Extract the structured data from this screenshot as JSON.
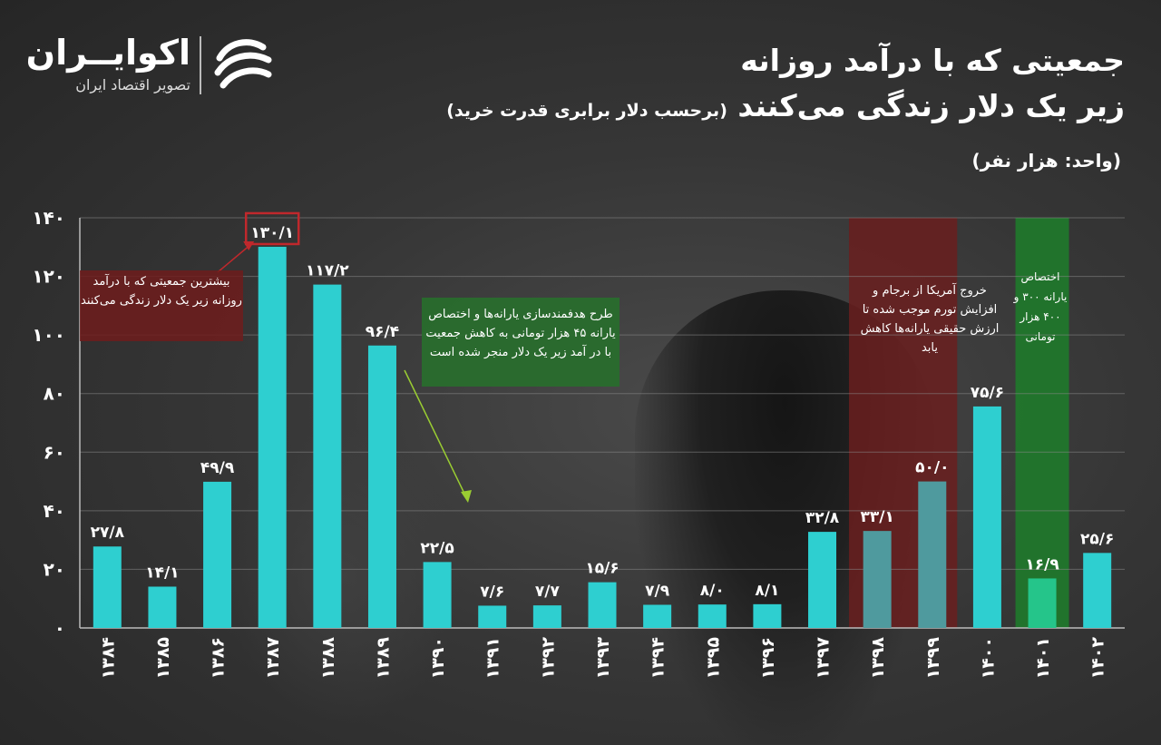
{
  "logo": {
    "name": "اکوایــران",
    "tagline": "تصویر اقتصاد ایران"
  },
  "title": {
    "line1": "جمعیتی که با درآمد روزانه",
    "line2": "زیر یک دلار زندگی می‌کنند",
    "line2_note": "(برحسب دلار برابری قدرت خرید)"
  },
  "unit_label": "(واحد: هزار نفر)",
  "annotations": {
    "max_note": "بیشترین جمعیتی که با درآمد روزانه زیر یک دلار زندگی می‌کنند",
    "subsidy_reform_note": "طرح هدفمندسازی یارانه‌ها و اختصاص یارانه ۴۵ هزار تومانی به کاهش جمعیت با در آمد زیر یک دلار منجر شده است",
    "us_exit_note": "خروج آمریکا از برجام و افزایش تورم موجب شده تا ارزش حقیقی یارانه‌ها کاهش یابد",
    "new_subsidy_note": "اختصاص یارانه ۳۰۰ و ۴۰۰ هزار تومانی"
  },
  "colors": {
    "bar": "#2ecfd0",
    "bar_red_zone": "#4f9a9e",
    "bar_green_zone": "#25c58a",
    "red_band": "#6a1e1e",
    "green_band": "#1f7a2b",
    "highlight_box": "#c0282c",
    "arrow": "#9acd32"
  },
  "chart_data": {
    "type": "bar",
    "categories": [
      "۱۳۸۴",
      "۱۳۸۵",
      "۱۳۸۶",
      "۱۳۸۷",
      "۱۳۸۸",
      "۱۳۸۹",
      "۱۳۹۰",
      "۱۳۹۱",
      "۱۳۹۲",
      "۱۳۹۳",
      "۱۳۹۴",
      "۱۳۹۵",
      "۱۳۹۶",
      "۱۳۹۷",
      "۱۳۹۸",
      "۱۳۹۹",
      "۱۴۰۰",
      "۱۴۰۱",
      "۱۴۰۲"
    ],
    "values": [
      27.8,
      14.1,
      49.9,
      130.1,
      117.2,
      96.4,
      22.5,
      7.6,
      7.7,
      15.6,
      7.9,
      8.0,
      8.1,
      32.8,
      33.1,
      50.0,
      75.6,
      16.9,
      25.6
    ],
    "value_labels": [
      "۲۷/۸",
      "۱۴/۱",
      "۴۹/۹",
      "۱۳۰/۱",
      "۱۱۷/۲",
      "۹۶/۴",
      "۲۲/۵",
      "۷/۶",
      "۷/۷",
      "۱۵/۶",
      "۷/۹",
      "۸/۰",
      "۸/۱",
      "۳۲/۸",
      "۳۳/۱",
      "۵۰/۰",
      "۷۵/۶",
      "۱۶/۹",
      "۲۵/۶"
    ],
    "ylim": [
      0,
      140
    ],
    "yticks": [
      0,
      20,
      40,
      60,
      80,
      100,
      120,
      140
    ],
    "ytick_labels": [
      "۰",
      "۲۰",
      "۴۰",
      "۶۰",
      "۸۰",
      "۱۰۰",
      "۱۲۰",
      "۱۴۰"
    ],
    "grid": true,
    "highlighted_bar_index": 3,
    "red_band_categories": [
      "۱۳۹۷",
      "۱۳۹۹"
    ],
    "green_band_category": "۱۴۰۱",
    "xlabel": "",
    "ylabel": ""
  }
}
